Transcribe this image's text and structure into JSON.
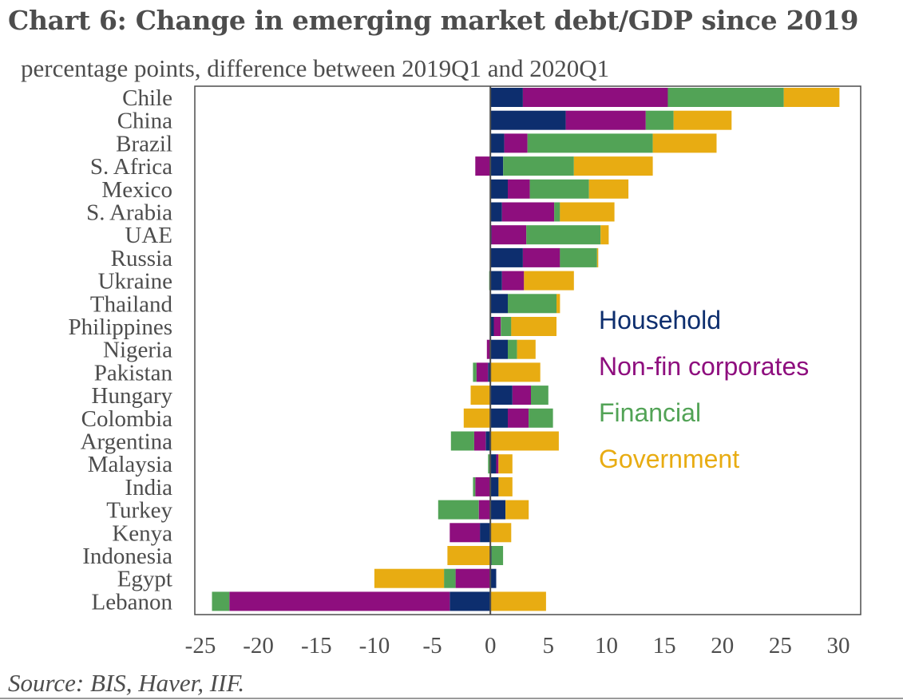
{
  "title": "Chart 6: Change in emerging market debt/GDP since 2019",
  "subtitle": "percentage points, difference between 2019Q1 and 2020Q1",
  "source": "Source: BIS, Haver, IIF.",
  "chart_data": {
    "type": "bar",
    "orientation": "horizontal",
    "stacked": true,
    "title": "Chart 6: Change in emerging market debt/GDP since 2019",
    "subtitle": "percentage points, difference between 2019Q1 and 2020Q1",
    "xlim": [
      -25,
      30
    ],
    "xticks": [
      -25,
      -20,
      -15,
      -10,
      -5,
      0,
      5,
      10,
      15,
      20,
      25,
      30
    ],
    "legend_position": "right",
    "categories": [
      "Chile",
      "China",
      "Brazil",
      "S. Africa",
      "Mexico",
      "S. Arabia",
      "UAE",
      "Russia",
      "Ukraine",
      "Thailand",
      "Philippines",
      "Nigeria",
      "Pakistan",
      "Hungary",
      "Colombia",
      "Argentina",
      "Malaysia",
      "India",
      "Turkey",
      "Kenya",
      "Indonesia",
      "Egypt",
      "Lebanon"
    ],
    "series": [
      {
        "name": "Household",
        "color": "#0d2e6e",
        "values": [
          2.8,
          6.5,
          1.2,
          1.1,
          1.5,
          1.0,
          0.1,
          2.8,
          1.0,
          1.5,
          0.3,
          1.5,
          -0.2,
          1.9,
          1.5,
          -0.4,
          0.5,
          0.7,
          1.3,
          -0.9,
          0.1,
          0.5,
          -3.5
        ]
      },
      {
        "name": "Non-fin corporates",
        "color": "#8e0e7e",
        "values": [
          12.5,
          6.9,
          2.0,
          -1.3,
          1.9,
          4.5,
          3.0,
          3.2,
          1.9,
          0.0,
          0.6,
          -0.3,
          -1.0,
          1.6,
          1.8,
          -1.0,
          0.2,
          -1.3,
          -1.0,
          -2.6,
          0.0,
          -3.0,
          -19.0
        ]
      },
      {
        "name": "Financial",
        "color": "#52a356",
        "values": [
          10.0,
          2.4,
          10.8,
          6.1,
          5.1,
          0.5,
          6.4,
          3.2,
          -0.1,
          4.2,
          0.9,
          0.8,
          -0.3,
          1.5,
          2.1,
          -2.0,
          -0.2,
          -0.2,
          -3.5,
          0.0,
          1.0,
          -1.0,
          -1.5
        ]
      },
      {
        "name": "Government",
        "color": "#e8ac12",
        "values": [
          4.8,
          5.0,
          5.5,
          6.8,
          3.4,
          4.7,
          0.7,
          0.1,
          4.3,
          0.3,
          3.9,
          1.6,
          4.3,
          -1.7,
          -2.3,
          5.9,
          1.2,
          1.2,
          2.0,
          1.8,
          -3.7,
          -6.0,
          4.8
        ]
      }
    ],
    "legend": [
      {
        "label": "Household",
        "color": "#0d2e6e"
      },
      {
        "label": "Non-fin corporates",
        "color": "#8e0e7e"
      },
      {
        "label": "Financial",
        "color": "#52a356"
      },
      {
        "label": "Government",
        "color": "#e8ac12"
      }
    ]
  }
}
